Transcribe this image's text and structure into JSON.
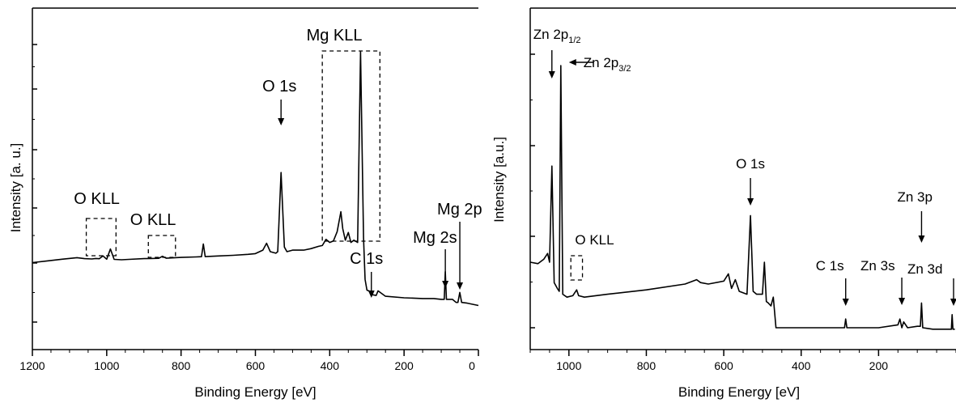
{
  "chart_data": [
    {
      "type": "line",
      "xlabel": "Binding Energy [eV]",
      "ylabel": "Intensity [a. u.]",
      "xlim": [
        1200,
        0
      ],
      "x_reversed": true,
      "y_ticklabels_shown": false,
      "grid": false,
      "legend": "none",
      "x_ticks": [
        {
          "value": 1200,
          "label": "1200"
        },
        {
          "value": 1000,
          "label": "1000"
        },
        {
          "value": 800,
          "label": "800"
        },
        {
          "value": 600,
          "label": "600"
        },
        {
          "value": 400,
          "label": "400"
        },
        {
          "value": 200,
          "label": "200"
        },
        {
          "value": 0,
          "label": "0"
        }
      ],
      "annotations": [
        {
          "text": "O KLL",
          "x": 1010
        },
        {
          "text": "O KLL",
          "x": 850
        },
        {
          "text": "Mg KLL",
          "x": 345
        },
        {
          "text": "O 1s",
          "x": 531
        },
        {
          "text": "C 1s",
          "x": 285
        },
        {
          "text": "Mg 2s",
          "x": 89
        },
        {
          "text": "Mg 2p",
          "x": 50
        }
      ],
      "x": [
        1200,
        1160,
        1120,
        1080,
        1060,
        1040,
        1030,
        1020,
        1010,
        1000,
        990,
        980,
        960,
        940,
        900,
        880,
        860,
        850,
        840,
        820,
        800,
        760,
        745,
        740,
        735,
        700,
        660,
        620,
        600,
        580,
        570,
        560,
        545,
        540,
        531,
        522,
        515,
        500,
        470,
        450,
        430,
        420,
        410,
        400,
        390,
        380,
        370,
        365,
        358,
        350,
        343,
        335,
        325,
        317,
        309,
        305,
        300,
        290,
        285,
        275,
        270,
        250,
        200,
        150,
        120,
        100,
        92,
        89,
        86,
        70,
        60,
        55,
        50,
        45,
        30,
        0
      ],
      "y": [
        5.8,
        8.0,
        10.2,
        12.2,
        11.0,
        10.5,
        11.2,
        10.8,
        14.5,
        10.2,
        23.5,
        10.0,
        9.5,
        10.0,
        11.0,
        11.2,
        11.4,
        14.0,
        11.5,
        12.0,
        12.5,
        13.2,
        13.5,
        30.0,
        13.6,
        14.4,
        15.3,
        16.5,
        17.5,
        22.0,
        31.0,
        20.0,
        18.0,
        20.0,
        123.0,
        26.0,
        20.0,
        22.0,
        22.0,
        24.0,
        27.0,
        28.0,
        36.0,
        32.0,
        34.0,
        46.0,
        72.0,
        50.0,
        35.0,
        45.0,
        32.0,
        35.0,
        32.0,
        280.0,
        38.0,
        -16.0,
        -30.0,
        -32.0,
        -36.0,
        -37.0,
        -31.0,
        -38.0,
        -40.0,
        -41.0,
        -41.0,
        -42.0,
        -42.0,
        -6.0,
        -42.0,
        -42.0,
        -46.0,
        -46.0,
        -33.0,
        -46.0,
        -47.0,
        -50.0
      ],
      "bracket_boxes": [
        {
          "label": "O KLL",
          "x_from": 1055,
          "x_to": 975
        },
        {
          "label": "O KLL",
          "x_from": 888,
          "x_to": 815
        },
        {
          "label": "Mg KLL",
          "x_from": 420,
          "x_to": 265
        }
      ]
    },
    {
      "type": "line",
      "xlabel": "Binding Energy [eV]",
      "ylabel": "Intensity [a.u.]",
      "xlim": [
        1100,
        0
      ],
      "x_reversed": true,
      "y_ticklabels_shown": false,
      "grid": false,
      "legend": "none",
      "x_ticks": [
        {
          "value": 1000,
          "label": "1000"
        },
        {
          "value": 800,
          "label": "800"
        },
        {
          "value": 600,
          "label": "600"
        },
        {
          "value": 400,
          "label": "400"
        },
        {
          "value": 200,
          "label": "200"
        }
      ],
      "annotations": [
        {
          "text": "Zn 2p",
          "sub": "1/2",
          "x": 1044
        },
        {
          "text": "Zn 2p",
          "sub": "3/2",
          "x": 1021
        },
        {
          "text": "O KLL",
          "x": 980
        },
        {
          "text": "O 1s",
          "x": 531
        },
        {
          "text": "C 1s",
          "x": 285
        },
        {
          "text": "Zn 3s",
          "x": 140
        },
        {
          "text": "Zn 3p",
          "x": 89
        },
        {
          "text": "Zn 3d",
          "x": 10
        }
      ],
      "x": [
        1100,
        1080,
        1065,
        1055,
        1050,
        1044,
        1038,
        1030,
        1025,
        1021,
        1016,
        1005,
        990,
        980,
        975,
        960,
        900,
        800,
        700,
        670,
        660,
        640,
        600,
        588,
        580,
        570,
        560,
        540,
        531,
        524,
        515,
        500,
        495,
        490,
        485,
        478,
        472,
        465,
        400,
        300,
        288,
        285,
        282,
        200,
        150,
        145,
        140,
        135,
        125,
        100,
        92,
        89,
        86,
        60,
        30,
        12,
        10,
        8,
        3
      ],
      "y": [
        30.0,
        29.0,
        32.0,
        36.0,
        30.0,
        96.0,
        16.0,
        12.0,
        10.0,
        165.0,
        8.0,
        6.0,
        7.0,
        11.0,
        7.0,
        6.0,
        8.0,
        11.0,
        15.0,
        18.0,
        16.0,
        15.0,
        17.0,
        22.0,
        12.0,
        18.0,
        10.0,
        8.0,
        62.0,
        10.0,
        8.0,
        8.0,
        30.0,
        3.0,
        2.0,
        0.0,
        6.0,
        -15.0,
        -15.0,
        -15.0,
        -15.0,
        -9.0,
        -15.0,
        -15.0,
        -13.0,
        -9.0,
        -15.0,
        -11.0,
        -15.0,
        -14.0,
        -14.0,
        2.0,
        -15.0,
        -16.0,
        -16.0,
        -16.0,
        -6.0,
        -16.0,
        -16.0
      ],
      "bracket_boxes": [
        {
          "label": "O KLL",
          "x_from": 995,
          "x_to": 965
        }
      ]
    }
  ]
}
